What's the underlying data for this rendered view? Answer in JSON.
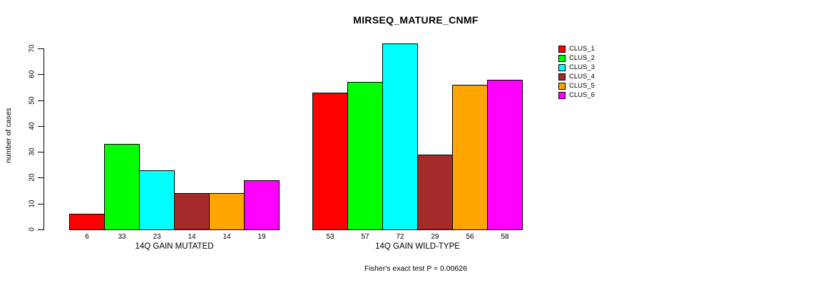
{
  "chart_data": {
    "type": "bar",
    "title": "MIRSEQ_MATURE_CNMF",
    "ylabel": "number of cases",
    "xlabel": "",
    "ylim": [
      0,
      70
    ],
    "yticks": [
      0,
      10,
      20,
      30,
      40,
      50,
      60,
      70
    ],
    "grid": false,
    "legend_position": "right",
    "categories": [
      "14Q GAIN MUTATED",
      "14Q GAIN WILD-TYPE"
    ],
    "series": [
      {
        "name": "CLUS_1",
        "color": "#FF0000",
        "values": [
          6,
          53
        ]
      },
      {
        "name": "CLUS_2",
        "color": "#00FF00",
        "values": [
          33,
          57
        ]
      },
      {
        "name": "CLUS_3",
        "color": "#00FFFF",
        "values": [
          23,
          72
        ]
      },
      {
        "name": "CLUS_4",
        "color": "#A52A2A",
        "values": [
          14,
          29
        ]
      },
      {
        "name": "CLUS_5",
        "color": "#FFA500",
        "values": [
          14,
          56
        ]
      },
      {
        "name": "CLUS_6",
        "color": "#FF00FF",
        "values": [
          19,
          58
        ]
      }
    ],
    "bar_value_labels": [
      [
        6,
        33,
        23,
        14,
        14,
        19
      ],
      [
        53,
        57,
        72,
        29,
        56,
        58
      ]
    ],
    "footnote": "Fisher's exact test P = 0.00626",
    "axis_color": "#000000",
    "bar_border_color": "#000000"
  }
}
